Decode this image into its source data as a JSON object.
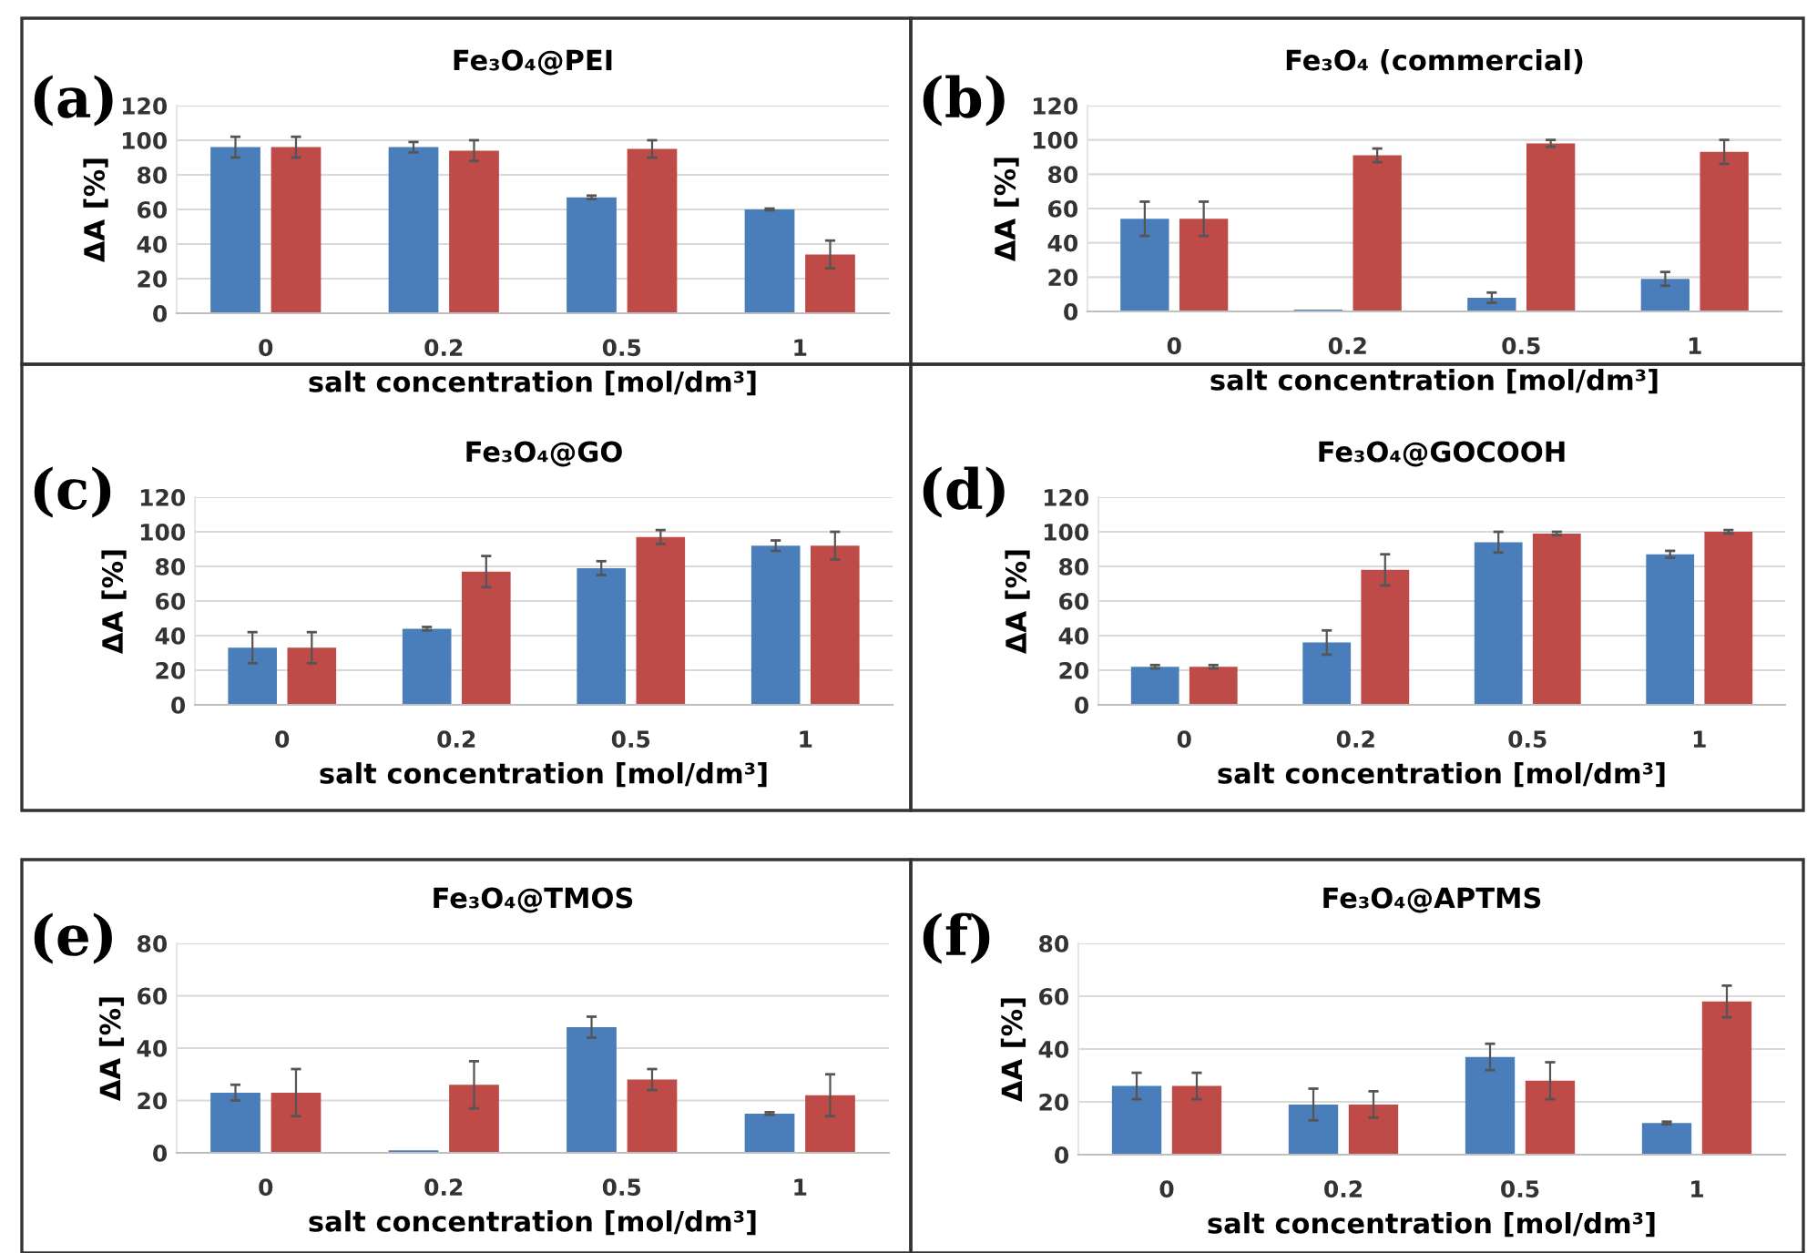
{
  "chart_data": [
    {
      "type": "bar",
      "title": "Fe₃O₄@PEI",
      "xlabel": "salt concentration [mol/dm³]",
      "ylabel": "ΔA [%]",
      "annotations": [
        "(a)"
      ],
      "categories": [
        "0",
        "0.2",
        "0.5",
        "1"
      ],
      "ylim": [
        0,
        120
      ],
      "yticks": [
        0,
        20,
        40,
        60,
        80,
        100,
        120
      ],
      "grid": "y",
      "series": [
        {
          "color": "#4a7ebb",
          "values": [
            96,
            96,
            67,
            60
          ],
          "errors": [
            6,
            3,
            1,
            0.5
          ]
        },
        {
          "color": "#be4b48",
          "values": [
            96,
            94,
            95,
            34
          ],
          "errors": [
            6,
            6,
            5,
            8
          ]
        }
      ]
    },
    {
      "type": "bar",
      "title": "Fe₃O₄ (commercial)",
      "xlabel": "salt concentration [mol/dm³]",
      "ylabel": "ΔA [%]",
      "annotations": [
        "(b)"
      ],
      "categories": [
        "0",
        "0.2",
        "0.5",
        "1"
      ],
      "ylim": [
        0,
        120
      ],
      "yticks": [
        0,
        20,
        40,
        60,
        80,
        100,
        120
      ],
      "grid": "y",
      "series": [
        {
          "color": "#4a7ebb",
          "values": [
            54,
            1,
            8,
            19
          ],
          "errors": [
            10,
            null,
            3,
            4
          ]
        },
        {
          "color": "#be4b48",
          "values": [
            54,
            91,
            98,
            93
          ],
          "errors": [
            10,
            4,
            2,
            7
          ]
        }
      ]
    },
    {
      "type": "bar",
      "title": "Fe₃O₄@GO",
      "xlabel": "salt concentration [mol/dm³]",
      "ylabel": "ΔA [%]",
      "annotations": [
        "(c)"
      ],
      "categories": [
        "0",
        "0.2",
        "0.5",
        "1"
      ],
      "ylim": [
        0,
        120
      ],
      "yticks": [
        0,
        20,
        40,
        60,
        80,
        100,
        120
      ],
      "grid": "y",
      "series": [
        {
          "color": "#4a7ebb",
          "values": [
            33,
            44,
            79,
            92
          ],
          "errors": [
            9,
            1,
            4,
            3
          ]
        },
        {
          "color": "#be4b48",
          "values": [
            33,
            77,
            97,
            92
          ],
          "errors": [
            9,
            9,
            4,
            8
          ]
        }
      ]
    },
    {
      "type": "bar",
      "title": "Fe₃O₄@GOCOOH",
      "xlabel": "salt concentration [mol/dm³]",
      "ylabel": "ΔA [%]",
      "annotations": [
        "(d)"
      ],
      "categories": [
        "0",
        "0.2",
        "0.5",
        "1"
      ],
      "ylim": [
        0,
        120
      ],
      "yticks": [
        0,
        20,
        40,
        60,
        80,
        100,
        120
      ],
      "grid": "y",
      "series": [
        {
          "color": "#4a7ebb",
          "values": [
            22,
            36,
            94,
            87
          ],
          "errors": [
            1,
            7,
            6,
            2
          ]
        },
        {
          "color": "#be4b48",
          "values": [
            22,
            78,
            99,
            100
          ],
          "errors": [
            1,
            9,
            1,
            1
          ]
        }
      ]
    },
    {
      "type": "bar",
      "title": "Fe₃O₄@TMOS",
      "xlabel": "salt concentration [mol/dm³]",
      "ylabel": "ΔA [%]",
      "annotations": [
        "(e)"
      ],
      "categories": [
        "0",
        "0.2",
        "0.5",
        "1"
      ],
      "ylim": [
        0,
        80
      ],
      "yticks": [
        0,
        20,
        40,
        60,
        80
      ],
      "grid": "y",
      "series": [
        {
          "color": "#4a7ebb",
          "values": [
            23,
            1,
            48,
            15
          ],
          "errors": [
            3,
            null,
            4,
            0.5
          ]
        },
        {
          "color": "#be4b48",
          "values": [
            23,
            26,
            28,
            22
          ],
          "errors": [
            9,
            9,
            4,
            8
          ]
        }
      ]
    },
    {
      "type": "bar",
      "title": "Fe₃O₄@APTMS",
      "xlabel": "salt concentration [mol/dm³]",
      "ylabel": "ΔA [%]",
      "annotations": [
        "(f)"
      ],
      "categories": [
        "0",
        "0.2",
        "0.5",
        "1"
      ],
      "ylim": [
        0,
        80
      ],
      "yticks": [
        0,
        20,
        40,
        60,
        80
      ],
      "grid": "y",
      "series": [
        {
          "color": "#4a7ebb",
          "values": [
            26,
            19,
            37,
            12
          ],
          "errors": [
            5,
            6,
            5,
            0.5
          ]
        },
        {
          "color": "#be4b48",
          "values": [
            26,
            19,
            28,
            58
          ],
          "errors": [
            5,
            5,
            7,
            6
          ]
        }
      ]
    }
  ]
}
